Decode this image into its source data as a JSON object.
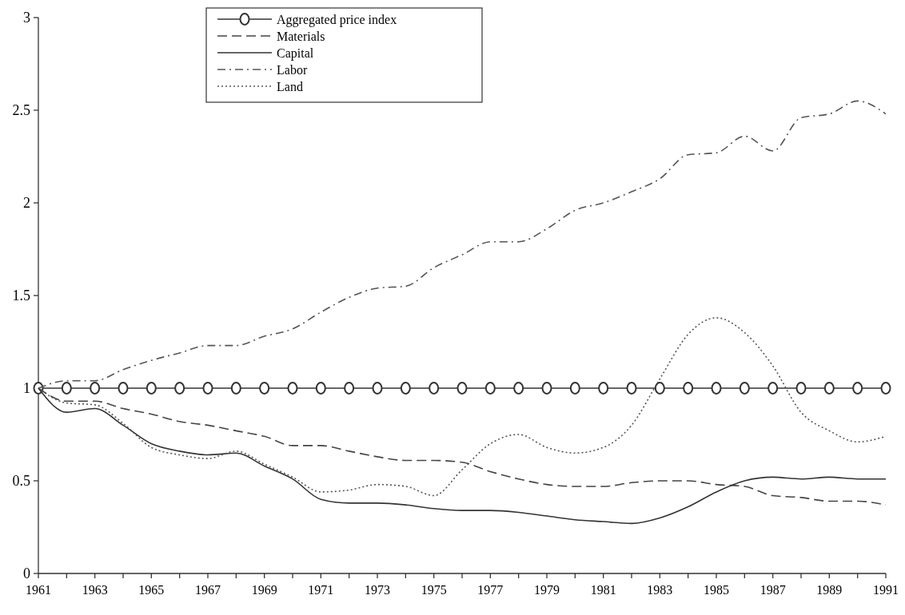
{
  "chart_data": {
    "type": "line",
    "x": [
      1961,
      1962,
      1963,
      1964,
      1965,
      1966,
      1967,
      1968,
      1969,
      1970,
      1971,
      1972,
      1973,
      1974,
      1975,
      1976,
      1977,
      1978,
      1979,
      1980,
      1981,
      1982,
      1983,
      1984,
      1985,
      1986,
      1987,
      1988,
      1989,
      1990,
      1991
    ],
    "series": [
      {
        "name": "Aggregated price index",
        "color": "#333333",
        "marker": "circle",
        "line_style": "solid",
        "values": [
          1,
          1,
          1,
          1,
          1,
          1,
          1,
          1,
          1,
          1,
          1,
          1,
          1,
          1,
          1,
          1,
          1,
          1,
          1,
          1,
          1,
          1,
          1,
          1,
          1,
          1,
          1,
          1,
          1,
          1,
          1
        ]
      },
      {
        "name": "Materials",
        "color": "#444444",
        "marker": "none",
        "line_style": "dashed",
        "values": [
          1.0,
          0.93,
          0.93,
          0.89,
          0.86,
          0.82,
          0.8,
          0.77,
          0.74,
          0.69,
          0.69,
          0.66,
          0.63,
          0.61,
          0.61,
          0.6,
          0.55,
          0.51,
          0.48,
          0.47,
          0.47,
          0.49,
          0.5,
          0.5,
          0.48,
          0.47,
          0.42,
          0.41,
          0.39,
          0.39,
          0.37
        ]
      },
      {
        "name": "Capital",
        "color": "#333333",
        "marker": "none",
        "line_style": "solid",
        "values": [
          1.0,
          0.87,
          0.89,
          0.8,
          0.7,
          0.66,
          0.64,
          0.65,
          0.58,
          0.51,
          0.4,
          0.38,
          0.38,
          0.37,
          0.35,
          0.34,
          0.34,
          0.33,
          0.31,
          0.29,
          0.28,
          0.27,
          0.3,
          0.36,
          0.44,
          0.5,
          0.52,
          0.51,
          0.52,
          0.51,
          0.51
        ]
      },
      {
        "name": "Labor",
        "color": "#555555",
        "marker": "none",
        "line_style": "dashdot",
        "values": [
          1.0,
          1.04,
          1.04,
          1.1,
          1.15,
          1.19,
          1.23,
          1.23,
          1.28,
          1.32,
          1.41,
          1.49,
          1.54,
          1.55,
          1.65,
          1.72,
          1.79,
          1.79,
          1.86,
          1.96,
          2.0,
          2.06,
          2.13,
          2.26,
          2.27,
          2.36,
          2.28,
          2.46,
          2.48,
          2.55,
          2.48
        ]
      },
      {
        "name": "Land",
        "color": "#555555",
        "marker": "none",
        "line_style": "dotted",
        "values": [
          1.0,
          0.92,
          0.91,
          0.81,
          0.68,
          0.64,
          0.62,
          0.66,
          0.59,
          0.52,
          0.44,
          0.45,
          0.48,
          0.47,
          0.42,
          0.56,
          0.7,
          0.75,
          0.68,
          0.65,
          0.68,
          0.8,
          1.05,
          1.29,
          1.38,
          1.3,
          1.12,
          0.87,
          0.77,
          0.71,
          0.74
        ]
      }
    ],
    "xlim": [
      1961,
      1991
    ],
    "xticks": [
      1961,
      {
        "value": 1962,
        "label": null
      },
      1963,
      {
        "value": 1964,
        "label": null
      },
      1965,
      {
        "value": 1966,
        "label": null
      },
      1967,
      {
        "value": 1968,
        "label": null
      },
      1969,
      {
        "value": 1970,
        "label": null
      },
      1971,
      {
        "value": 1972,
        "label": null
      },
      1973,
      {
        "value": 1974,
        "label": null
      },
      1975,
      {
        "value": 1976,
        "label": null
      },
      1977,
      {
        "value": 1978,
        "label": null
      },
      1979,
      {
        "value": 1980,
        "label": null
      },
      1981,
      {
        "value": 1982,
        "label": null
      },
      1983,
      {
        "value": 1984,
        "label": null
      },
      1985,
      {
        "value": 1986,
        "label": null
      },
      1987,
      {
        "value": 1988,
        "label": null
      },
      1989,
      {
        "value": 1990,
        "label": null
      },
      1991
    ],
    "ylim": [
      0,
      3
    ],
    "yticks": [
      0,
      0.5,
      1,
      1.5,
      2,
      2.5,
      3
    ],
    "grid": false,
    "legend": "top left"
  }
}
